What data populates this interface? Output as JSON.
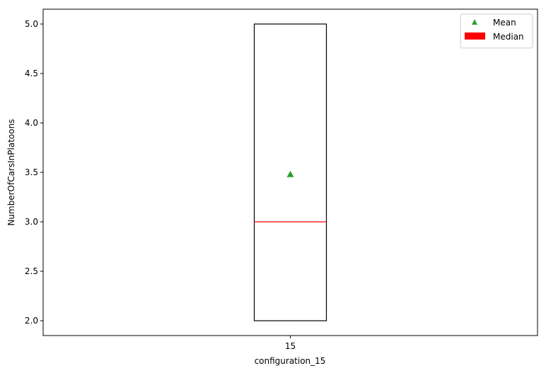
{
  "chart_data": {
    "type": "box",
    "title": "",
    "xlabel": "configuration_15",
    "ylabel": "NumberOfCarsInPlatoons",
    "categories": [
      "15"
    ],
    "boxes": [
      {
        "category": "15",
        "whisker_low": 2.0,
        "q1": 2.0,
        "median": 3.0,
        "q3": 5.0,
        "whisker_high": 5.0,
        "mean": 3.48
      }
    ],
    "yticks": [
      "2.0",
      "2.5",
      "3.0",
      "3.5",
      "4.0",
      "4.5",
      "5.0"
    ],
    "ylim": [
      1.85,
      5.15
    ],
    "grid": false,
    "legend": {
      "placement": "top-right",
      "entries": [
        {
          "label": "Mean",
          "marker": "triangle",
          "color": "#2ca02c"
        },
        {
          "label": "Median",
          "marker": "patch",
          "color": "#ff0000"
        }
      ]
    },
    "colors": {
      "box": "#000000",
      "median": "#ff0000",
      "mean": "#2ca02c"
    }
  }
}
